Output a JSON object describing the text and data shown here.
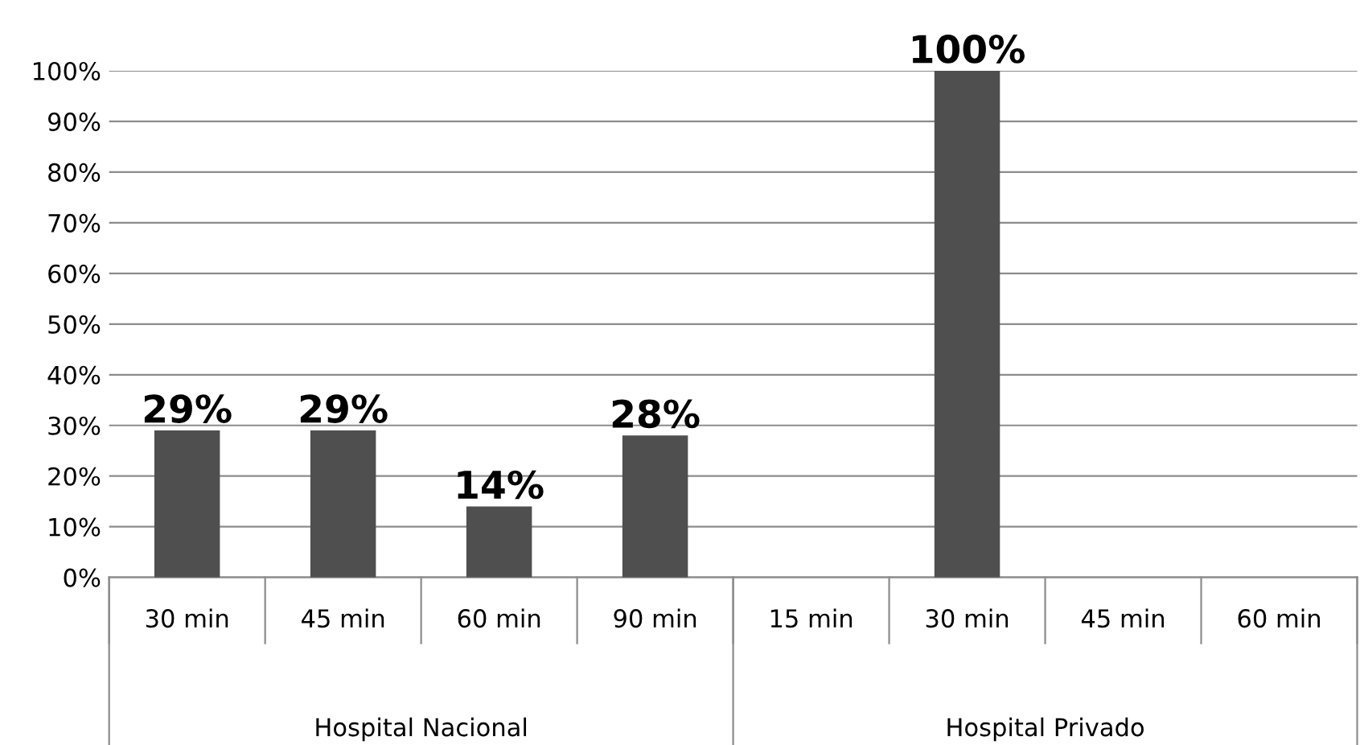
{
  "chart_data": {
    "type": "bar",
    "categories": [
      "30 min",
      "45 min",
      "60 min",
      "90 min",
      "15 min",
      "30 min",
      "45 min",
      "60 min"
    ],
    "values": [
      29,
      29,
      14,
      28,
      null,
      100,
      null,
      null
    ],
    "value_labels": [
      "29%",
      "29%",
      "14%",
      "28%",
      null,
      "100%",
      null,
      null
    ],
    "color": "#4f4f4f",
    "ylim": [
      0,
      100
    ],
    "yticks": [
      {
        "value": 0,
        "label": "0%"
      },
      {
        "value": 10,
        "label": "10%"
      },
      {
        "value": 20,
        "label": "20%"
      },
      {
        "value": 30,
        "label": "30%"
      },
      {
        "value": 40,
        "label": "40%"
      },
      {
        "value": 50,
        "label": "50%"
      },
      {
        "value": 60,
        "label": "60%"
      },
      {
        "value": 70,
        "label": "70%"
      },
      {
        "value": 80,
        "label": "80%"
      },
      {
        "value": 90,
        "label": "90%"
      },
      {
        "value": 100,
        "label": "100%"
      }
    ],
    "grid": "y",
    "annotations": [
      "Hospital Nacional",
      "Hospital Privado"
    ]
  }
}
